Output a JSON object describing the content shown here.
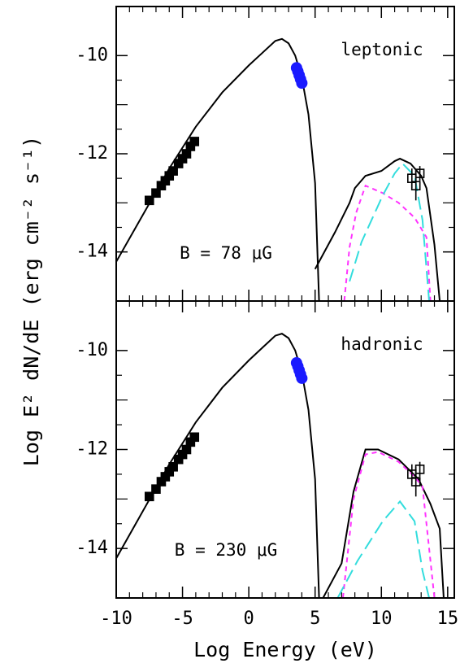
{
  "chart_data": [
    {
      "type": "line",
      "annotations": [
        "leptonic",
        "B = 78 μG"
      ],
      "ylabel": "Log E² dN/dE (erg cm⁻² s⁻¹)",
      "xlim": [
        -10,
        15.5
      ],
      "ylim": [
        -15,
        -9
      ],
      "xticks": [
        -10,
        -5,
        0,
        5,
        10,
        15
      ],
      "yticks": [
        -14,
        -12,
        -10
      ],
      "series": [
        {
          "style": "solid",
          "color": "#000000",
          "x": [
            -10,
            -8,
            -6,
            -4,
            -2,
            0,
            1,
            2,
            2.5,
            3,
            3.5,
            4,
            4.5,
            5,
            5.3
          ],
          "values": [
            -14.2,
            -13.25,
            -12.3,
            -11.45,
            -10.75,
            -10.2,
            -9.95,
            -9.7,
            -9.66,
            -9.75,
            -10.0,
            -10.45,
            -11.2,
            -12.6,
            -15
          ]
        },
        {
          "style": "solid",
          "color": "#000000",
          "x": [
            5.0,
            6.5,
            7.6,
            8.0,
            8.8,
            10.0,
            11.0,
            11.4,
            12.2,
            13.0,
            13.4,
            14.0,
            14.4
          ],
          "values": [
            -14.35,
            -13.6,
            -13.0,
            -12.7,
            -12.45,
            -12.35,
            -12.15,
            -12.1,
            -12.2,
            -12.45,
            -12.7,
            -13.85,
            -15
          ]
        },
        {
          "style": "dashed",
          "color": "#ff33ff",
          "x": [
            7.2,
            7.6,
            8.1,
            8.8,
            10.1,
            11.3,
            12.5,
            13.4,
            13.7
          ],
          "values": [
            -15,
            -13.9,
            -13.2,
            -12.65,
            -12.8,
            -13.0,
            -13.3,
            -13.7,
            -15
          ]
        },
        {
          "style": "long-dashed",
          "color": "#33dddd",
          "x": [
            7.6,
            8.5,
            10.1,
            11.0,
            11.6,
            12.5,
            13.1,
            13.6
          ],
          "values": [
            -14.6,
            -13.8,
            -12.85,
            -12.4,
            -12.2,
            -12.45,
            -13.35,
            -15
          ]
        },
        {
          "marker": "filled-square",
          "color": "#000000",
          "x": [
            -7.5,
            -7.0,
            -6.6,
            -6.3,
            -6.0,
            -5.7,
            -5.3,
            -5.0,
            -4.7,
            -4.4,
            -4.1
          ],
          "values": [
            -12.95,
            -12.8,
            -12.65,
            -12.55,
            -12.45,
            -12.35,
            -12.2,
            -12.1,
            -12.0,
            -11.85,
            -11.75
          ]
        },
        {
          "marker": "circle",
          "color": "#1a1aff",
          "x": [
            3.6,
            3.7,
            3.8,
            3.9,
            4.0
          ],
          "values": [
            -10.25,
            -10.32,
            -10.4,
            -10.48,
            -10.56
          ]
        },
        {
          "marker": "open-square",
          "color": "#000000",
          "x": [
            12.3,
            12.6,
            12.9
          ],
          "values": [
            -12.5,
            -12.65,
            -12.4
          ],
          "errors": [
            0.2,
            0.3,
            0.15
          ]
        }
      ]
    },
    {
      "type": "line",
      "annotations": [
        "hadronic",
        "B = 230 μG"
      ],
      "xlabel": "Log Energy (eV)",
      "xlim": [
        -10,
        15.5
      ],
      "ylim": [
        -15,
        -9
      ],
      "xticks": [
        -10,
        -5,
        0,
        5,
        10,
        15
      ],
      "yticks": [
        -14,
        -12,
        -10
      ],
      "series": [
        {
          "style": "solid",
          "color": "#000000",
          "x": [
            -10,
            -8,
            -6,
            -4,
            -2,
            0,
            1,
            2,
            2.5,
            3,
            3.5,
            4,
            4.5,
            5,
            5.3
          ],
          "values": [
            -14.2,
            -13.25,
            -12.3,
            -11.45,
            -10.75,
            -10.2,
            -9.95,
            -9.7,
            -9.66,
            -9.75,
            -10.0,
            -10.45,
            -11.2,
            -12.6,
            -15
          ]
        },
        {
          "style": "solid",
          "color": "#000000",
          "x": [
            5.6,
            7.0,
            7.9,
            8.8,
            9.75,
            11.3,
            12.8,
            13.7,
            14.4,
            14.7
          ],
          "values": [
            -15,
            -14.3,
            -12.85,
            -12.0,
            -12.0,
            -12.2,
            -12.6,
            -13.1,
            -13.6,
            -15
          ]
        },
        {
          "style": "dashed",
          "color": "#ff33ff",
          "x": [
            7.1,
            7.9,
            8.8,
            9.75,
            11.3,
            12.5,
            13.1,
            14.0
          ],
          "values": [
            -15,
            -13.0,
            -12.1,
            -12.05,
            -12.25,
            -12.55,
            -12.75,
            -15
          ]
        },
        {
          "style": "long-dashed",
          "color": "#33dddd",
          "x": [
            6.7,
            8.2,
            10.1,
            11.4,
            12.5,
            13.1,
            13.6
          ],
          "values": [
            -15,
            -14.25,
            -13.45,
            -13.05,
            -13.45,
            -14.45,
            -15
          ]
        },
        {
          "marker": "filled-square",
          "color": "#000000",
          "x": [
            -7.5,
            -7.0,
            -6.6,
            -6.3,
            -6.0,
            -5.7,
            -5.3,
            -5.0,
            -4.7,
            -4.4,
            -4.1
          ],
          "values": [
            -12.95,
            -12.8,
            -12.65,
            -12.55,
            -12.45,
            -12.35,
            -12.2,
            -12.1,
            -12.0,
            -11.85,
            -11.75
          ]
        },
        {
          "marker": "circle",
          "color": "#1a1aff",
          "x": [
            3.6,
            3.7,
            3.8,
            3.9,
            4.0
          ],
          "values": [
            -10.25,
            -10.32,
            -10.4,
            -10.48,
            -10.56
          ]
        },
        {
          "marker": "open-square",
          "color": "#000000",
          "x": [
            12.3,
            12.6,
            12.9
          ],
          "values": [
            -12.5,
            -12.65,
            -12.4
          ],
          "errors": [
            0.2,
            0.3,
            0.15
          ]
        }
      ]
    }
  ]
}
